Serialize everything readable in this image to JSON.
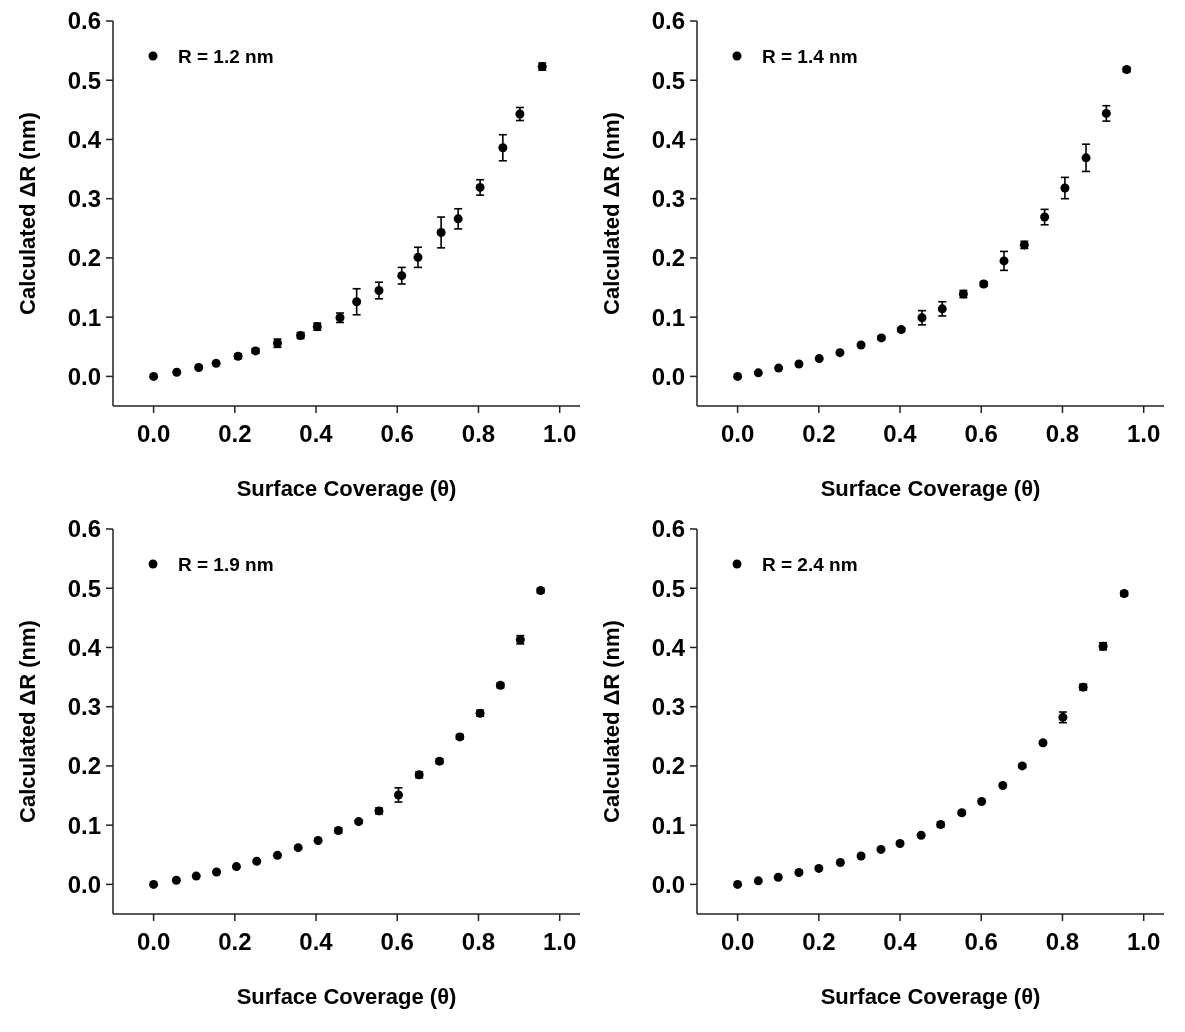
{
  "chart_data": [
    {
      "type": "scatter",
      "xlabel": "Surface Coverage (θ)",
      "ylabel": "Calculated ΔR (nm)",
      "xlim": [
        -0.1,
        1.05
      ],
      "ylim": [
        -0.05,
        0.6
      ],
      "xticks": [
        {
          "value": 0,
          "label": "0.0"
        },
        {
          "value": 0.2,
          "label": "0.2"
        },
        {
          "value": 0.4,
          "label": "0.4"
        },
        {
          "value": 0.6,
          "label": "0.6"
        },
        {
          "value": 0.8,
          "label": "0.8"
        },
        {
          "value": 1,
          "label": "1.0"
        }
      ],
      "yticks": [
        {
          "value": 0,
          "label": "0.0"
        },
        {
          "value": 0.1,
          "label": "0.1"
        },
        {
          "value": 0.2,
          "label": "0.2"
        },
        {
          "value": 0.3,
          "label": "0.3"
        },
        {
          "value": 0.4,
          "label": "0.4"
        },
        {
          "value": 0.5,
          "label": "0.5"
        },
        {
          "value": 0.6,
          "label": "0.6"
        }
      ],
      "marker": "circle",
      "legend": "top left",
      "grid": false,
      "series": [
        {
          "name": "R = 1.2 nm",
          "color": "#000000",
          "x": [
            0,
            0.057,
            0.111,
            0.154,
            0.208,
            0.251,
            0.305,
            0.362,
            0.403,
            0.459,
            0.5,
            0.555,
            0.611,
            0.651,
            0.708,
            0.75,
            0.804,
            0.86,
            0.902,
            0.957
          ],
          "values": [
            0,
            0.007,
            0.015,
            0.022,
            0.034,
            0.043,
            0.056,
            0.069,
            0.084,
            0.099,
            0.126,
            0.145,
            0.17,
            0.201,
            0.243,
            0.266,
            0.319,
            0.386,
            0.443,
            0.523
          ],
          "errors": [
            null,
            null,
            null,
            null,
            0.004,
            0.004,
            0.007,
            0.005,
            0.006,
            0.008,
            0.022,
            0.014,
            0.014,
            0.017,
            0.026,
            0.017,
            0.013,
            0.022,
            0.011,
            0.006
          ]
        }
      ]
    },
    {
      "type": "scatter",
      "xlabel": "Surface Coverage (θ)",
      "ylabel": "Calculated ΔR (nm)",
      "xlim": [
        -0.1,
        1.05
      ],
      "ylim": [
        -0.05,
        0.6
      ],
      "xticks": [
        {
          "value": 0,
          "label": "0.0"
        },
        {
          "value": 0.2,
          "label": "0.2"
        },
        {
          "value": 0.4,
          "label": "0.4"
        },
        {
          "value": 0.6,
          "label": "0.6"
        },
        {
          "value": 0.8,
          "label": "0.8"
        },
        {
          "value": 1,
          "label": "1.0"
        }
      ],
      "yticks": [
        {
          "value": 0,
          "label": "0.0"
        },
        {
          "value": 0.1,
          "label": "0.1"
        },
        {
          "value": 0.2,
          "label": "0.2"
        },
        {
          "value": 0.3,
          "label": "0.3"
        },
        {
          "value": 0.4,
          "label": "0.4"
        },
        {
          "value": 0.5,
          "label": "0.5"
        },
        {
          "value": 0.6,
          "label": "0.6"
        }
      ],
      "marker": "circle",
      "legend": "top left",
      "grid": false,
      "series": [
        {
          "name": "R = 1.4 nm",
          "color": "#000000",
          "x": [
            0,
            0.051,
            0.101,
            0.151,
            0.201,
            0.252,
            0.304,
            0.354,
            0.403,
            0.454,
            0.504,
            0.556,
            0.606,
            0.656,
            0.706,
            0.756,
            0.806,
            0.858,
            0.908,
            0.958
          ],
          "values": [
            0,
            0.006,
            0.014,
            0.021,
            0.03,
            0.04,
            0.053,
            0.065,
            0.079,
            0.099,
            0.114,
            0.139,
            0.156,
            0.195,
            0.222,
            0.269,
            0.318,
            0.369,
            0.444,
            0.518
          ],
          "errors": [
            null,
            null,
            null,
            null,
            null,
            null,
            null,
            0.003,
            0.003,
            0.012,
            0.012,
            0.006,
            0.004,
            0.016,
            0.006,
            0.013,
            0.018,
            0.023,
            0.013,
            0.004
          ]
        }
      ]
    },
    {
      "type": "scatter",
      "xlabel": "Surface Coverage (θ)",
      "ylabel": "Calculated ΔR (nm)",
      "xlim": [
        -0.1,
        1.05
      ],
      "ylim": [
        -0.05,
        0.6
      ],
      "xticks": [
        {
          "value": 0,
          "label": "0.0"
        },
        {
          "value": 0.2,
          "label": "0.2"
        },
        {
          "value": 0.4,
          "label": "0.4"
        },
        {
          "value": 0.6,
          "label": "0.6"
        },
        {
          "value": 0.8,
          "label": "0.8"
        },
        {
          "value": 1,
          "label": "1.0"
        }
      ],
      "yticks": [
        {
          "value": 0,
          "label": "0.0"
        },
        {
          "value": 0.1,
          "label": "0.1"
        },
        {
          "value": 0.2,
          "label": "0.2"
        },
        {
          "value": 0.3,
          "label": "0.3"
        },
        {
          "value": 0.4,
          "label": "0.4"
        },
        {
          "value": 0.5,
          "label": "0.5"
        },
        {
          "value": 0.6,
          "label": "0.6"
        }
      ],
      "marker": "circle",
      "legend": "top left",
      "grid": false,
      "series": [
        {
          "name": "R = 1.9 nm",
          "color": "#000000",
          "x": [
            0,
            0.056,
            0.105,
            0.155,
            0.204,
            0.254,
            0.305,
            0.356,
            0.405,
            0.455,
            0.505,
            0.555,
            0.603,
            0.654,
            0.704,
            0.754,
            0.804,
            0.854,
            0.903,
            0.953
          ],
          "values": [
            0,
            0.007,
            0.014,
            0.021,
            0.03,
            0.039,
            0.049,
            0.062,
            0.074,
            0.091,
            0.106,
            0.124,
            0.151,
            0.185,
            0.208,
            0.249,
            0.289,
            0.336,
            0.413,
            0.496
          ],
          "errors": [
            null,
            null,
            null,
            null,
            null,
            null,
            null,
            null,
            null,
            0.004,
            0.003,
            0.005,
            0.012,
            0.005,
            0.004,
            0.004,
            0.005,
            0.004,
            0.007,
            0.004
          ]
        }
      ]
    },
    {
      "type": "scatter",
      "xlabel": "Surface Coverage (θ)",
      "ylabel": "Calculated ΔR (nm)",
      "xlim": [
        -0.1,
        1.05
      ],
      "ylim": [
        -0.05,
        0.6
      ],
      "xticks": [
        {
          "value": 0,
          "label": "0.0"
        },
        {
          "value": 0.2,
          "label": "0.2"
        },
        {
          "value": 0.4,
          "label": "0.4"
        },
        {
          "value": 0.6,
          "label": "0.6"
        },
        {
          "value": 0.8,
          "label": "0.8"
        },
        {
          "value": 1,
          "label": "1.0"
        }
      ],
      "yticks": [
        {
          "value": 0,
          "label": "0.0"
        },
        {
          "value": 0.1,
          "label": "0.1"
        },
        {
          "value": 0.2,
          "label": "0.2"
        },
        {
          "value": 0.3,
          "label": "0.3"
        },
        {
          "value": 0.4,
          "label": "0.4"
        },
        {
          "value": 0.5,
          "label": "0.5"
        },
        {
          "value": 0.6,
          "label": "0.6"
        }
      ],
      "marker": "circle",
      "legend": "top left",
      "grid": false,
      "series": [
        {
          "name": "R = 2.4 nm",
          "color": "#000000",
          "x": [
            0,
            0.051,
            0.1,
            0.151,
            0.2,
            0.253,
            0.304,
            0.353,
            0.4,
            0.452,
            0.5,
            0.552,
            0.601,
            0.653,
            0.701,
            0.752,
            0.801,
            0.851,
            0.9,
            0.952
          ],
          "values": [
            0,
            0.006,
            0.012,
            0.02,
            0.027,
            0.037,
            0.048,
            0.059,
            0.069,
            0.083,
            0.101,
            0.121,
            0.14,
            0.167,
            0.2,
            0.239,
            0.282,
            0.333,
            0.402,
            0.491
          ],
          "errors": [
            null,
            null,
            null,
            null,
            null,
            null,
            null,
            null,
            null,
            null,
            0.004,
            0.003,
            null,
            null,
            0.003,
            0.003,
            0.009,
            0.005,
            0.006,
            0.004
          ]
        }
      ]
    }
  ]
}
